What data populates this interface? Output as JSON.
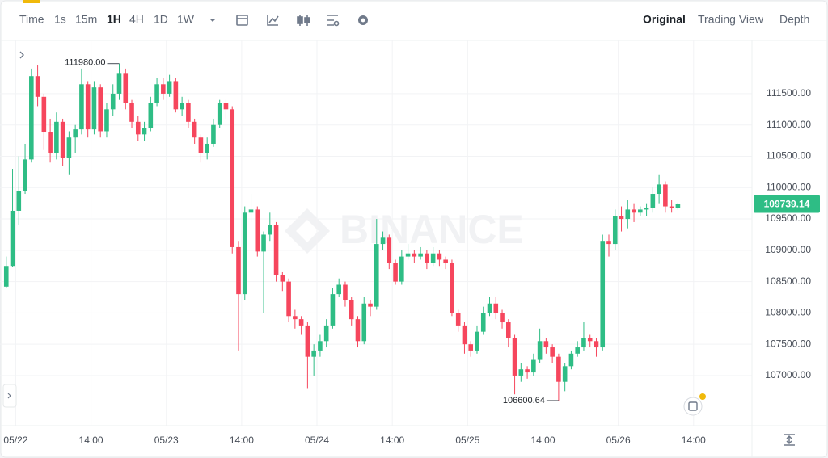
{
  "toolbar": {
    "intervals": [
      "Time",
      "1s",
      "15m",
      "1H",
      "4H",
      "1D",
      "1W"
    ],
    "views": [
      "Original",
      "Trading View",
      "Depth"
    ]
  },
  "chart_data": {
    "type": "candlestick",
    "watermark": "BINANCE",
    "open": [
      108420,
      108750,
      109630,
      109950,
      110450,
      111780,
      111450,
      110880,
      110550,
      111050,
      110480,
      110800,
      110930,
      111650,
      110930,
      111600,
      110900,
      111250,
      111500,
      111830,
      111350,
      111050,
      110850,
      110950,
      111350,
      111650,
      111500,
      111700,
      111250,
      111350,
      111050,
      110800,
      110550,
      110700,
      111000,
      111350,
      111250,
      109050,
      108300,
      109600,
      109650,
      108980,
      109250,
      109400,
      108600,
      108500,
      107950,
      107900,
      107800,
      107300,
      107400,
      107550,
      107800,
      108300,
      108450,
      108200,
      107900,
      107550,
      108150,
      108100,
      109100,
      109200,
      108800,
      108500,
      108900,
      108950,
      108900,
      108950,
      108800,
      108950,
      108850,
      108800,
      108000,
      107800,
      107500,
      107400,
      107700,
      108000,
      108150,
      108000,
      107850,
      107600,
      107000,
      107100,
      107050,
      107250,
      107550,
      107450,
      107300,
      106900,
      107150,
      107350,
      107450,
      107600,
      107550,
      107450,
      109150,
      109100,
      109550,
      109500,
      109650,
      109600,
      109650,
      109680,
      109900,
      110050,
      109700,
      109680
    ],
    "high": [
      108900,
      110300,
      110500,
      110700,
      111900,
      111950,
      111500,
      111100,
      111200,
      111100,
      110900,
      111000,
      111900,
      111700,
      111700,
      111650,
      111350,
      111650,
      111980,
      111900,
      111400,
      111150,
      111050,
      111450,
      111750,
      111750,
      111800,
      111750,
      111450,
      111400,
      111100,
      110850,
      110800,
      111100,
      111400,
      111400,
      111300,
      109150,
      109700,
      109900,
      109700,
      109300,
      109600,
      109450,
      108650,
      108550,
      108050,
      107950,
      107850,
      107500,
      107650,
      107900,
      108400,
      108550,
      108500,
      108250,
      107950,
      108250,
      108200,
      109500,
      109300,
      109250,
      108850,
      109000,
      109100,
      109000,
      109050,
      109000,
      109050,
      109000,
      108900,
      108850,
      108050,
      107850,
      107550,
      107800,
      108100,
      108250,
      108250,
      108050,
      107900,
      107650,
      107200,
      107150,
      107350,
      107750,
      107600,
      107500,
      107350,
      107200,
      107400,
      107550,
      107850,
      107650,
      107600,
      109250,
      109250,
      109650,
      109700,
      109800,
      109750,
      109700,
      109750,
      110000,
      110200,
      110100,
      109800,
      109760
    ],
    "low": [
      108400,
      108740,
      109400,
      109900,
      110400,
      111300,
      110600,
      110400,
      110450,
      110350,
      110200,
      110550,
      110850,
      110800,
      110850,
      110800,
      110800,
      111150,
      111400,
      111250,
      110950,
      110750,
      110750,
      110900,
      111300,
      111400,
      111450,
      111200,
      111150,
      110950,
      110700,
      110400,
      110450,
      110650,
      110950,
      111100,
      108950,
      107400,
      108200,
      109450,
      108900,
      108000,
      109150,
      108500,
      108350,
      107850,
      107750,
      107650,
      106800,
      107000,
      107300,
      107450,
      107750,
      108250,
      108100,
      107800,
      107450,
      107500,
      107950,
      108050,
      109000,
      108700,
      108450,
      108450,
      108850,
      108800,
      108850,
      108700,
      108750,
      108750,
      108700,
      107950,
      107700,
      107350,
      107300,
      107350,
      107650,
      107950,
      107900,
      107750,
      107450,
      106700,
      106900,
      106950,
      107000,
      107200,
      107350,
      107200,
      106600.64,
      106750,
      107100,
      107300,
      107400,
      107450,
      107300,
      107400,
      108900,
      109000,
      109300,
      109350,
      109450,
      109550,
      109550,
      109600,
      109750,
      109600,
      109600,
      109650
    ],
    "close": [
      108750,
      109630,
      109950,
      110450,
      111780,
      111450,
      110880,
      110550,
      111050,
      110480,
      110800,
      110930,
      111650,
      110930,
      111600,
      110900,
      111250,
      111500,
      111830,
      111350,
      111050,
      110850,
      110950,
      111350,
      111650,
      111500,
      111700,
      111250,
      111350,
      111050,
      110800,
      110550,
      110700,
      111000,
      111350,
      111250,
      109050,
      108300,
      109600,
      109650,
      108980,
      109250,
      109400,
      108600,
      108500,
      107950,
      107900,
      107800,
      107300,
      107400,
      107550,
      107800,
      108300,
      108450,
      108200,
      107900,
      107550,
      108150,
      108100,
      109100,
      109200,
      108800,
      108500,
      108900,
      108950,
      108900,
      108950,
      108800,
      108950,
      108850,
      108800,
      108000,
      107800,
      107500,
      107400,
      107700,
      108000,
      108150,
      108000,
      107850,
      107600,
      107000,
      107100,
      107050,
      107250,
      107550,
      107450,
      107300,
      106900,
      107150,
      107350,
      107450,
      107600,
      107550,
      107450,
      109150,
      109100,
      109550,
      109500,
      109650,
      109600,
      109650,
      109680,
      109900,
      110050,
      109700,
      109680,
      109739.14
    ],
    "up_color": "#2ebd85",
    "down_color": "#f6465d",
    "last_price_color": "#2ebd85",
    "high_label": "111980.00",
    "low_label": "106600.64",
    "last_label": "109739.14",
    "xlim": [
      -1,
      118.8
    ],
    "xticks": [
      {
        "value": 1.5,
        "label": "05/22"
      },
      {
        "value": 13.5,
        "label": "14:00"
      },
      {
        "value": 25.5,
        "label": "05/23"
      },
      {
        "value": 37.5,
        "label": "14:00"
      },
      {
        "value": 49.5,
        "label": "05/24"
      },
      {
        "value": 61.5,
        "label": "14:00"
      },
      {
        "value": 73.5,
        "label": "05/25"
      },
      {
        "value": 85.5,
        "label": "14:00"
      },
      {
        "value": 97.5,
        "label": "05/26"
      },
      {
        "value": 109.5,
        "label": "14:00"
      }
    ],
    "ylim": [
      106200,
      112350
    ],
    "yticks": [
      {
        "value": 107000,
        "label": "107000.00"
      },
      {
        "value": 107500,
        "label": "107500.00"
      },
      {
        "value": 108000,
        "label": "108000.00"
      },
      {
        "value": 108500,
        "label": "108500.00"
      },
      {
        "value": 109000,
        "label": "109000.00"
      },
      {
        "value": 109500,
        "label": "109500.00"
      },
      {
        "value": 110000,
        "label": "110000.00"
      },
      {
        "value": 110500,
        "label": "110500.00"
      },
      {
        "value": 111000,
        "label": "111000.00"
      },
      {
        "value": 111500,
        "label": "111500.00"
      }
    ],
    "grid": true
  }
}
